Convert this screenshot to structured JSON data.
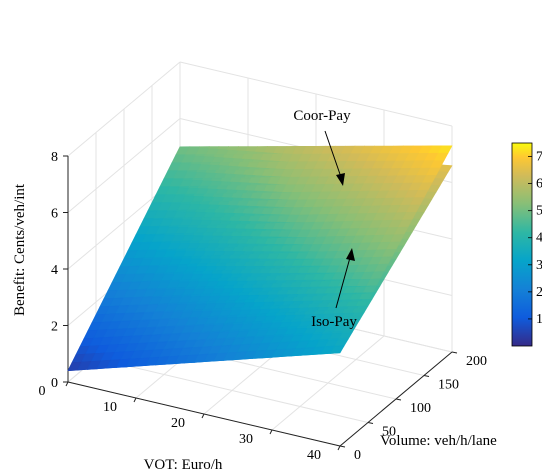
{
  "chart_data": {
    "type": "surface",
    "title": "",
    "xlabel": "VOT: Euro/h",
    "ylabel": "Volume: veh/h/lane",
    "zlabel": "Benefit: Cents/veh/int",
    "x_ticks": [
      "0",
      "10",
      "20",
      "30",
      "40"
    ],
    "y_ticks": [
      "0",
      "50",
      "100",
      "150",
      "200"
    ],
    "z_ticks": [
      "0",
      "2",
      "4",
      "6",
      "8"
    ],
    "xlim": [
      0,
      40
    ],
    "ylim": [
      0,
      200
    ],
    "zlim": [
      0,
      8
    ],
    "colorbar_ticks": [
      "1",
      "2",
      "3",
      "4",
      "5",
      "6",
      "7"
    ],
    "colorbar_range": [
      0,
      7.5
    ],
    "colormap": "parula",
    "grid": true,
    "series": [
      {
        "name": "Coor-Pay",
        "corner_values": [
          {
            "vot": 0,
            "volume": 0,
            "benefit": 0.4
          },
          {
            "vot": 40,
            "volume": 0,
            "benefit": 3.3
          },
          {
            "vot": 0,
            "volume": 200,
            "benefit": 5.0
          },
          {
            "vot": 40,
            "volume": 200,
            "benefit": 7.3
          }
        ]
      },
      {
        "name": "Iso-Pay",
        "corner_values": [
          {
            "vot": 0,
            "volume": 0,
            "benefit": 0.4
          },
          {
            "vot": 40,
            "volume": 0,
            "benefit": 3.3
          },
          {
            "vot": 0,
            "volume": 200,
            "benefit": 5.0
          },
          {
            "vot": 40,
            "volume": 200,
            "benefit": 6.6
          }
        ]
      }
    ],
    "annotations": [
      {
        "text": "Coor-Pay",
        "points_to": "Coor-Pay"
      },
      {
        "text": "Iso-Pay",
        "points_to": "Iso-Pay"
      }
    ]
  }
}
